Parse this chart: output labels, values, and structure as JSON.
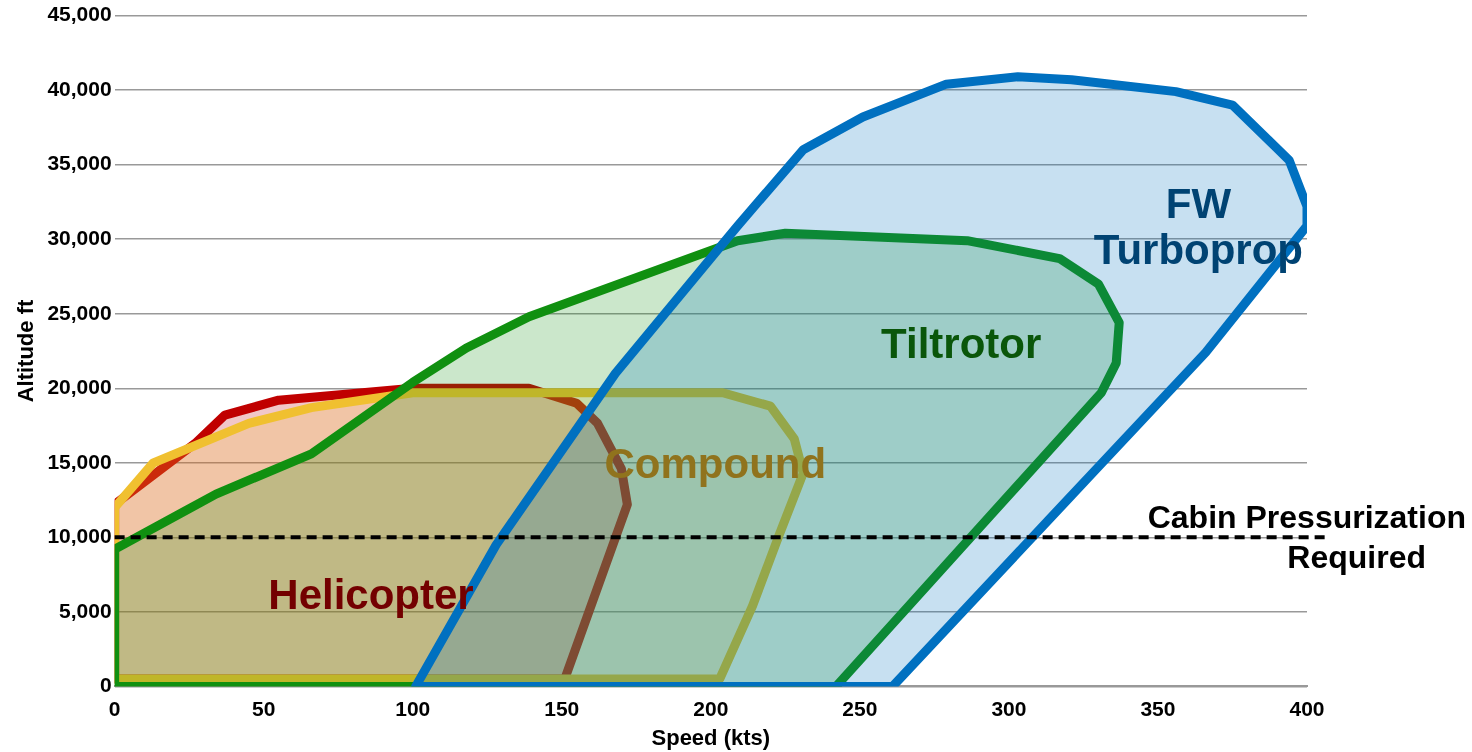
{
  "chart_data": {
    "type": "area",
    "xlabel": "Speed (kts)",
    "ylabel": "Altitude ft",
    "xlim": [
      0,
      400
    ],
    "xticks": [
      0,
      50,
      100,
      150,
      200,
      250,
      300,
      350,
      400
    ],
    "ylim": [
      0,
      45000
    ],
    "yticks": [
      {
        "value": 0,
        "label": "0"
      },
      {
        "value": 5000,
        "label": "5,000"
      },
      {
        "value": 10000,
        "label": "10,000"
      },
      {
        "value": 15000,
        "label": "15,000"
      },
      {
        "value": 20000,
        "label": "20,000"
      },
      {
        "value": 25000,
        "label": "25,000"
      },
      {
        "value": 30000,
        "label": "30,000"
      },
      {
        "value": 35000,
        "label": "35,000"
      },
      {
        "value": 40000,
        "label": "40,000"
      },
      {
        "value": 45000,
        "label": "45,000"
      }
    ],
    "grid": "y",
    "legend": false,
    "marker": "none",
    "line_style": "solid",
    "series": [
      {
        "name": "FW Turboprop",
        "color": "#0070c0",
        "x": [
          101,
          128,
          168,
          209,
          231,
          251,
          279,
          303,
          321,
          356,
          375,
          394,
          400,
          400,
          366,
          328,
          261,
          101
        ],
        "values": [
          0,
          9500,
          21000,
          30900,
          36000,
          38200,
          40400,
          40900,
          40700,
          39900,
          39000,
          35300,
          32200,
          30900,
          22400,
          14300,
          0,
          0
        ]
      },
      {
        "name": "Tiltrotor",
        "color": "#109010",
        "x": [
          0,
          34,
          66,
          100,
          118,
          139,
          209,
          225,
          286,
          317,
          330,
          337,
          336,
          331,
          242,
          0,
          0
        ],
        "values": [
          9200,
          12900,
          15600,
          20400,
          22700,
          24800,
          29900,
          30400,
          29900,
          28700,
          27000,
          24400,
          21700,
          19700,
          0,
          0,
          9200
        ]
      },
      {
        "name": "Compound",
        "color": "#f0c030",
        "x": [
          0,
          13,
          45,
          66,
          100,
          204,
          220,
          228,
          231,
          223,
          214,
          203,
          0,
          0
        ],
        "values": [
          12000,
          15000,
          17650,
          18700,
          19700,
          19700,
          18800,
          16600,
          14300,
          10200,
          5400,
          500,
          500,
          12000
        ]
      },
      {
        "name": "Helicopter",
        "color": "#c00000",
        "x": [
          0,
          27,
          37,
          55,
          100,
          139,
          155,
          162,
          170,
          172,
          151,
          0,
          0
        ],
        "values": [
          12200,
          16300,
          18200,
          19200,
          20000,
          20000,
          19000,
          17650,
          14600,
          12200,
          500,
          500,
          12200
        ]
      }
    ],
    "ref_lines": [
      {
        "axis": "y",
        "value": 10000,
        "label": "Cabin Pressurization Required",
        "color": "#000000",
        "line_style": "dashed"
      }
    ]
  }
}
